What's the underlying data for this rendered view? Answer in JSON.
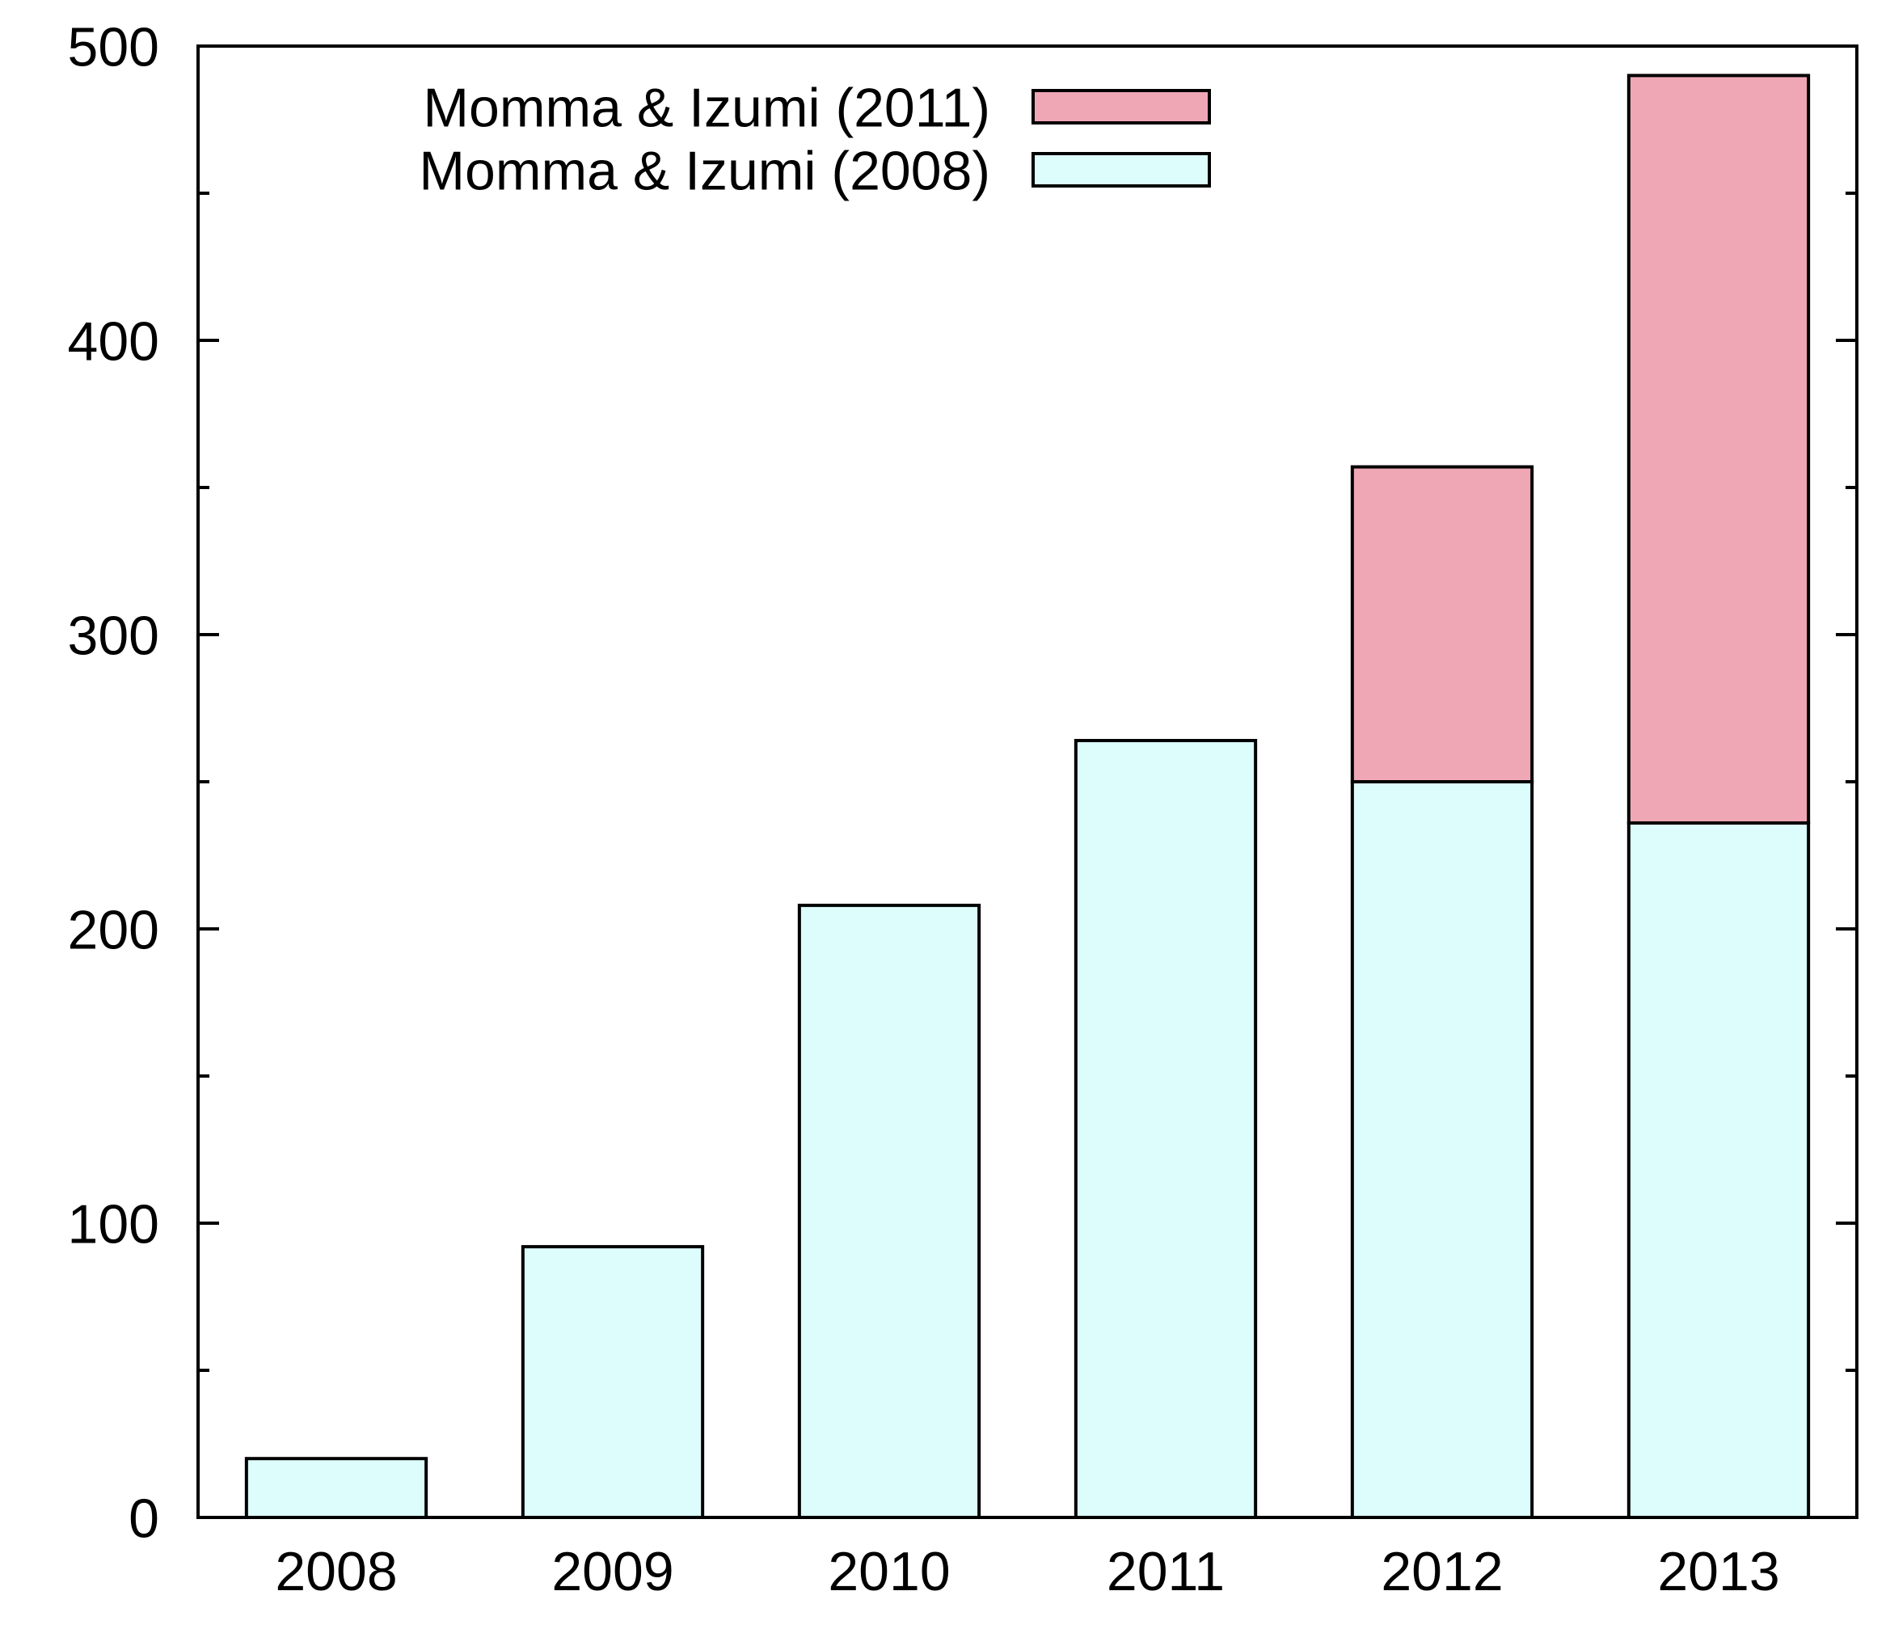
{
  "chart_data": {
    "type": "bar",
    "stacked": true,
    "title": "",
    "xlabel": "",
    "ylabel": "",
    "categories": [
      "2008",
      "2009",
      "2010",
      "2011",
      "2012",
      "2013"
    ],
    "series": [
      {
        "name": "Momma & Izumi (2008)",
        "color": "#ddfcfc",
        "values": [
          20,
          92,
          208,
          264,
          250,
          236
        ]
      },
      {
        "name": "Momma & Izumi (2011)",
        "color": "#efa7b5",
        "values": [
          0,
          0,
          0,
          0,
          107,
          254
        ]
      }
    ],
    "legend_order": [
      1,
      0
    ],
    "legend_position": "top-left",
    "ylim": [
      0,
      500
    ],
    "yticks": [
      0,
      100,
      200,
      300,
      400,
      500
    ],
    "y_minor_step": 50,
    "grid": false
  }
}
